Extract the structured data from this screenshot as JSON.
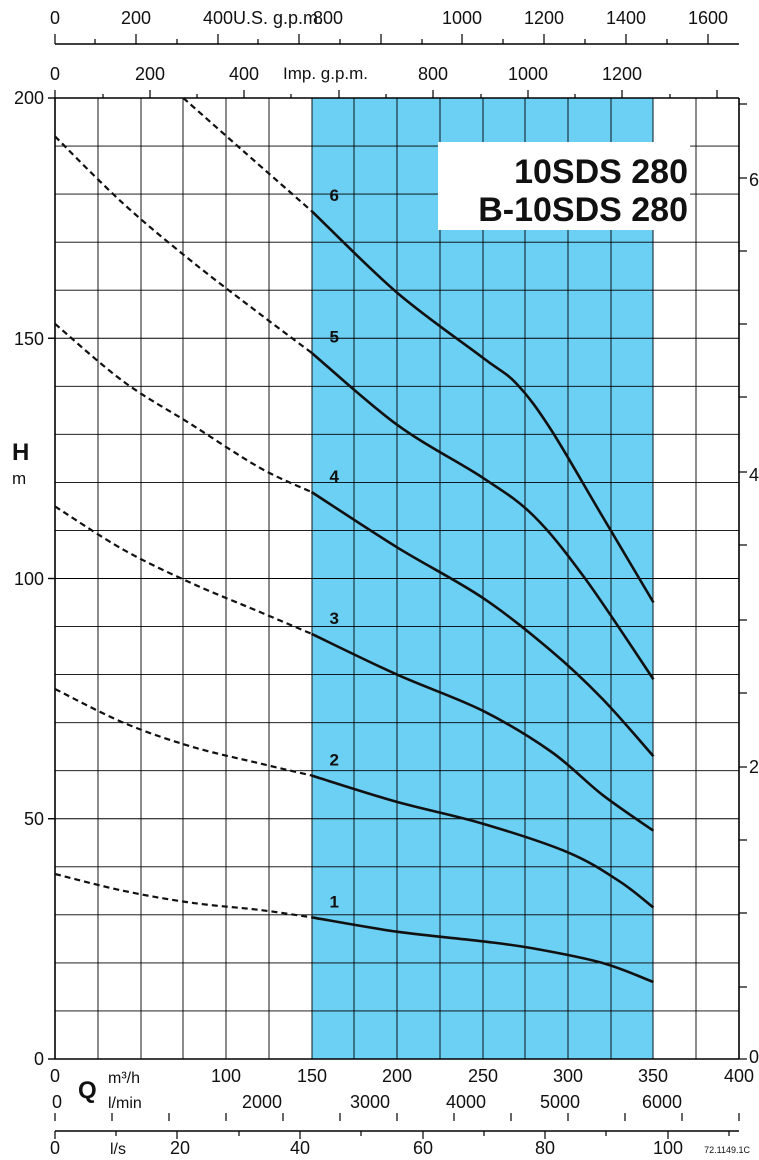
{
  "chart_data": {
    "type": "line",
    "title_lines": [
      "10SDS 280",
      "B-10SDS 280"
    ],
    "ylabel": "H",
    "yunit": "m",
    "xlabel": "Q",
    "ylim": [
      0,
      200
    ],
    "xlim": [
      0,
      400
    ],
    "grid": true,
    "x_unit_primary": "m³/h",
    "x_unit_lmin": "l/min",
    "x_unit_ls": "l/s",
    "us_gpm_label": "U.S. g.p.m.",
    "imp_gpm_label": "Imp. g.p.m.",
    "code": "72.1149.1C",
    "highlight_range": [
      150,
      350
    ],
    "highlight_color": "#6ccff4",
    "y_ticks": [
      "0",
      "50",
      "100",
      "150",
      "200"
    ],
    "x_ticks_m3h": [
      "0",
      "100",
      "150",
      "200",
      "250",
      "300",
      "350",
      "400"
    ],
    "x_ticks_lmin": [
      "0",
      "2000",
      "3000",
      "4000",
      "5000",
      "6000"
    ],
    "x_ticks_ls": [
      "0",
      "20",
      "40",
      "60",
      "80",
      "100"
    ],
    "us_ticks": [
      "0",
      "200",
      "400",
      "800",
      "1000",
      "1200",
      "1400",
      "1600"
    ],
    "imp_ticks": [
      "0",
      "200",
      "400",
      "800",
      "1000",
      "1200"
    ],
    "right_ticks": [
      "6",
      "4",
      "2",
      "0"
    ],
    "series": [
      {
        "name": "1",
        "dashed": [
          [
            0,
            38.5
          ],
          [
            40,
            35
          ],
          [
            80,
            32.5
          ],
          [
            120,
            31
          ],
          [
            150,
            29.5
          ]
        ],
        "solid": [
          [
            150,
            29.5
          ],
          [
            200,
            26.5
          ],
          [
            250,
            24.5
          ],
          [
            280,
            23
          ],
          [
            320,
            20
          ],
          [
            350,
            16
          ]
        ]
      },
      {
        "name": "2",
        "dashed": [
          [
            0,
            77
          ],
          [
            40,
            70
          ],
          [
            80,
            65
          ],
          [
            120,
            61.5
          ],
          [
            150,
            59
          ]
        ],
        "solid": [
          [
            150,
            59
          ],
          [
            200,
            53.5
          ],
          [
            250,
            49
          ],
          [
            300,
            43
          ],
          [
            330,
            37
          ],
          [
            350,
            31.5
          ]
        ]
      },
      {
        "name": "3",
        "dashed": [
          [
            0,
            115
          ],
          [
            40,
            106
          ],
          [
            80,
            99
          ],
          [
            120,
            93
          ],
          [
            150,
            88.5
          ]
        ],
        "solid": [
          [
            150,
            88.5
          ],
          [
            200,
            80
          ],
          [
            250,
            72.5
          ],
          [
            290,
            64
          ],
          [
            320,
            55
          ],
          [
            350,
            47.5
          ]
        ]
      },
      {
        "name": "4",
        "dashed": [
          [
            0,
            153
          ],
          [
            40,
            141
          ],
          [
            80,
            132
          ],
          [
            120,
            123
          ],
          [
            150,
            118
          ]
        ],
        "solid": [
          [
            150,
            118
          ],
          [
            200,
            106.5
          ],
          [
            250,
            96
          ],
          [
            290,
            85
          ],
          [
            320,
            75
          ],
          [
            350,
            63
          ]
        ]
      },
      {
        "name": "5",
        "dashed": [
          [
            0,
            192
          ],
          [
            40,
            178
          ],
          [
            80,
            166
          ],
          [
            120,
            155
          ],
          [
            150,
            147
          ]
        ],
        "solid": [
          [
            150,
            147
          ],
          [
            200,
            132
          ],
          [
            250,
            121
          ],
          [
            280,
            113
          ],
          [
            310,
            100
          ],
          [
            350,
            79
          ]
        ]
      },
      {
        "name": "6",
        "dashed": [
          [
            75,
            200
          ],
          [
            110,
            189
          ],
          [
            150,
            176.5
          ]
        ],
        "solid": [
          [
            150,
            176.5
          ],
          [
            200,
            159.5
          ],
          [
            250,
            146
          ],
          [
            270,
            140.5
          ],
          [
            290,
            131
          ],
          [
            320,
            113
          ],
          [
            350,
            95
          ]
        ]
      }
    ]
  }
}
